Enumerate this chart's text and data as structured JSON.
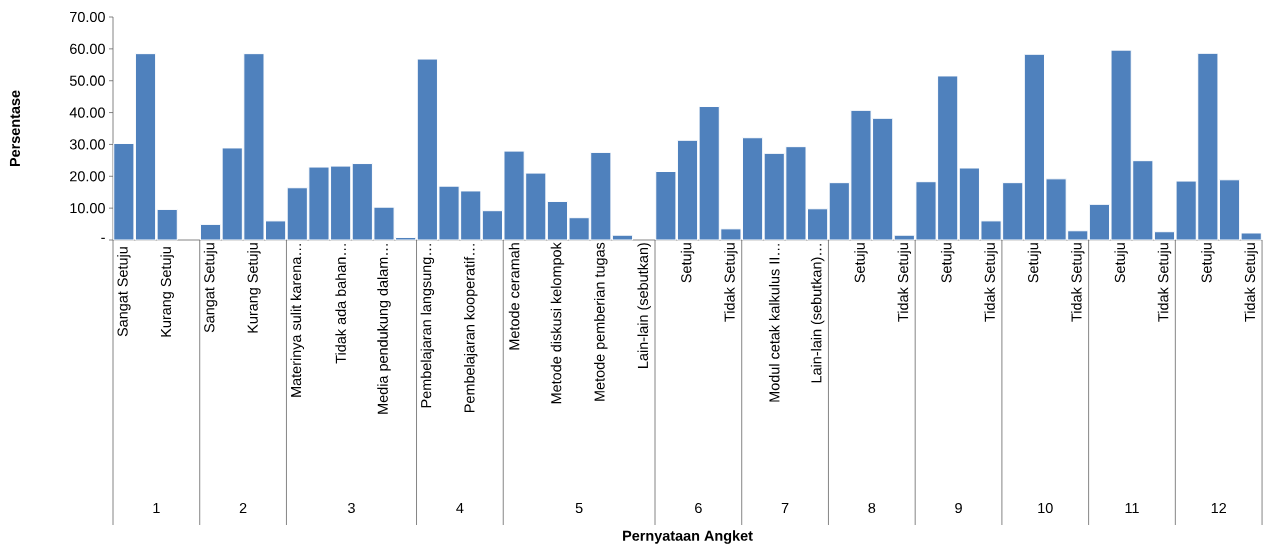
{
  "chart_data": [
    {
      "type": "bar",
      "xlabel": "1",
      "ylabel": "Persentase",
      "annotations": [
        "Pernyataan Angket"
      ],
      "color": "#4f81bd",
      "categories": [
        "Sangat Setuju",
        null,
        "Kurang Setuju",
        null
      ],
      "values": [
        30.3,
        58.5,
        9.6,
        null
      ],
      "ylim": [
        0,
        70
      ],
      "yticks": [
        {
          "value": 0,
          "label": "-"
        },
        {
          "value": 10,
          "label": "10.00"
        },
        {
          "value": 20,
          "label": "20.00"
        },
        {
          "value": 30,
          "label": "30.00"
        },
        {
          "value": 40,
          "label": "40.00"
        },
        {
          "value": 50,
          "label": "50.00"
        },
        {
          "value": 60,
          "label": "60.00"
        },
        {
          "value": 70,
          "label": "70.00"
        }
      ]
    },
    {
      "type": "bar",
      "xlabel": "2",
      "color": "#4f81bd",
      "tick_labels": "x",
      "categories": [
        "Sangat Setuju",
        null,
        "Kurang Setuju",
        null
      ],
      "values": [
        4.9,
        28.9,
        58.5,
        6.0
      ],
      "ylim": [
        0,
        70
      ]
    },
    {
      "type": "bar",
      "xlabel": "3",
      "color": "#4f81bd",
      "tick_labels": "x",
      "categories": [
        "Materinya sulit karena…",
        null,
        "Tidak ada bahan…",
        null,
        "Media pendukung dalam…",
        null
      ],
      "values": [
        16.4,
        22.9,
        23.2,
        24.0,
        10.3,
        0.8
      ],
      "ylim": [
        0,
        70
      ]
    },
    {
      "type": "bar",
      "xlabel": "4",
      "color": "#4f81bd",
      "tick_labels": "x",
      "categories": [
        "Pembelajaran langsung…",
        null,
        "Pembelajaran kooperatif…",
        null
      ],
      "values": [
        56.8,
        16.9,
        15.4,
        9.2
      ],
      "ylim": [
        0,
        70
      ]
    },
    {
      "type": "bar",
      "xlabel": "5",
      "color": "#4f81bd",
      "tick_labels": "x",
      "categories": [
        "Metode ceramah",
        null,
        "Metode diskusi kelompok",
        null,
        "Metode pemberian tugas",
        null,
        "Lain-lain (sebutkan)"
      ],
      "values": [
        27.9,
        21.0,
        12.1,
        7.0,
        27.5,
        1.5,
        null
      ],
      "ylim": [
        0,
        70
      ]
    },
    {
      "type": "bar",
      "xlabel": "6",
      "color": "#4f81bd",
      "tick_labels": "x",
      "categories": [
        null,
        "Setuju",
        null,
        "Tidak Setuju"
      ],
      "values": [
        21.5,
        31.3,
        41.9,
        3.5
      ],
      "ylim": [
        0,
        70
      ]
    },
    {
      "type": "bar",
      "xlabel": "7",
      "color": "#4f81bd",
      "tick_labels": "x",
      "categories": [
        null,
        "Modul cetak  kalkulus II…",
        null,
        "Lain-lain (sebutkan)…"
      ],
      "values": [
        32.1,
        27.2,
        29.3,
        9.8
      ],
      "ylim": [
        0,
        70
      ]
    },
    {
      "type": "bar",
      "xlabel": "8",
      "color": "#4f81bd",
      "tick_labels": "x",
      "categories": [
        null,
        "Setuju",
        null,
        "Tidak Setuju"
      ],
      "values": [
        18.0,
        40.7,
        38.2,
        1.5
      ],
      "ylim": [
        0,
        70
      ]
    },
    {
      "type": "bar",
      "xlabel": "9",
      "color": "#4f81bd",
      "tick_labels": "x",
      "categories": [
        null,
        "Setuju",
        null,
        "Tidak Setuju"
      ],
      "values": [
        18.3,
        51.5,
        22.6,
        6.0
      ],
      "ylim": [
        0,
        70
      ]
    },
    {
      "type": "bar",
      "xlabel": "10",
      "color": "#4f81bd",
      "tick_labels": "x",
      "categories": [
        null,
        "Setuju",
        null,
        "Tidak Setuju"
      ],
      "values": [
        18.0,
        58.3,
        19.2,
        2.9
      ],
      "ylim": [
        0,
        70
      ]
    },
    {
      "type": "bar",
      "xlabel": "11",
      "color": "#4f81bd",
      "tick_labels": "x",
      "categories": [
        null,
        "Setuju",
        null,
        "Tidak Setuju"
      ],
      "values": [
        11.2,
        59.6,
        24.9,
        2.6
      ],
      "ylim": [
        0,
        70
      ]
    },
    {
      "type": "bar",
      "xlabel": "12",
      "color": "#4f81bd",
      "tick_labels": "x",
      "categories": [
        null,
        "Setuju",
        null,
        "Tidak Setuju"
      ],
      "values": [
        18.5,
        58.6,
        18.9,
        2.2
      ],
      "ylim": [
        0,
        70
      ]
    }
  ]
}
